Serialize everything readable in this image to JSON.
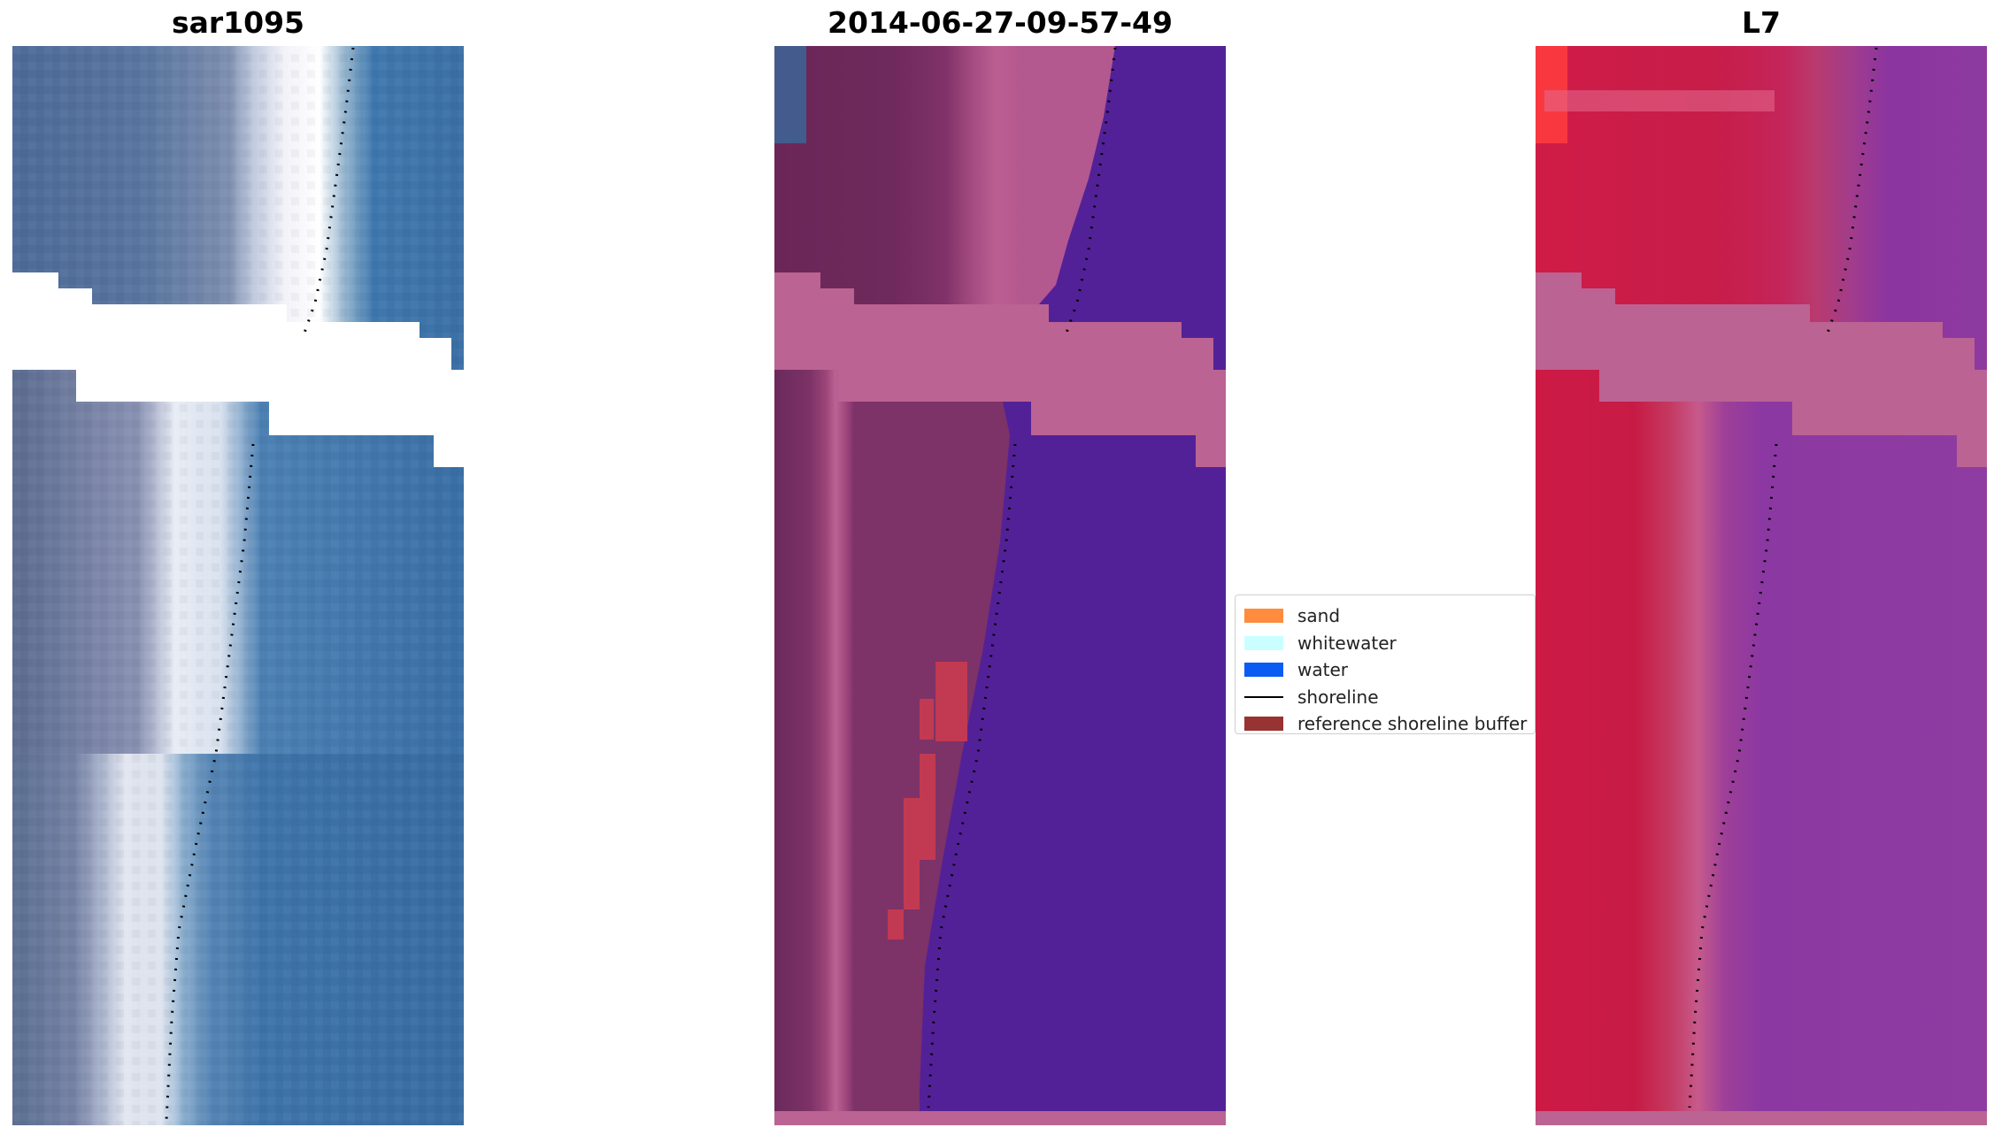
{
  "panels": [
    {
      "title": "sar1095"
    },
    {
      "title": "2014-06-27-09-57-49"
    },
    {
      "title": "L7"
    }
  ],
  "legend": {
    "items": [
      {
        "label": "sand",
        "color": "#ff8c3d",
        "kind": "patch"
      },
      {
        "label": "whitewater",
        "color": "#c9ffff",
        "kind": "patch"
      },
      {
        "label": "water",
        "color": "#0a5cf2",
        "kind": "patch"
      },
      {
        "label": "shoreline",
        "color": "#000000",
        "kind": "line"
      },
      {
        "label": "reference shoreline buffer",
        "color": "#973331",
        "kind": "patch"
      }
    ]
  }
}
